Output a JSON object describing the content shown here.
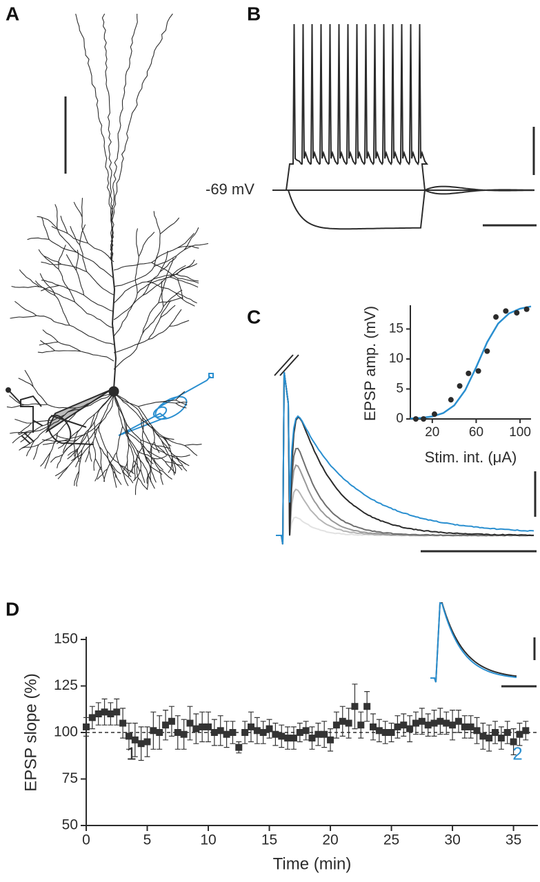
{
  "panels": [
    "A",
    "B",
    "C",
    "D"
  ],
  "membrane_potential_label": "-69 mV",
  "chart_data": [
    {
      "type": "scatter",
      "x_label": "Stim. int. (μA)",
      "y_label": "EPSP amp. (mV)",
      "x": [
        5,
        12,
        22,
        37,
        45,
        53,
        62,
        70,
        78,
        87,
        97,
        106
      ],
      "values": [
        0,
        0,
        0.8,
        3.2,
        5.5,
        7.6,
        8,
        11.3,
        17,
        18,
        17.7,
        18.3
      ],
      "color": "#2b2b2b",
      "fit": {
        "x": [
          0,
          10,
          20,
          30,
          40,
          50,
          60,
          70,
          80,
          90,
          100,
          110
        ],
        "values": [
          0.07,
          0.17,
          0.41,
          0.98,
          2.26,
          4.78,
          8.64,
          12.8,
          15.9,
          17.6,
          18.4,
          18.76
        ],
        "color": "#2a8fd0"
      },
      "xlim": [
        0,
        110
      ],
      "ylim": [
        0,
        18.5
      ],
      "xticks": [
        20,
        60,
        100
      ],
      "yticks": [
        0,
        5,
        10,
        15
      ]
    },
    {
      "type": "scatter",
      "x_label": "Time (min)",
      "y_label": "EPSP slope (%)",
      "x": [
        0,
        0.5,
        1,
        1.5,
        2,
        2.5,
        3,
        3.5,
        4,
        4.5,
        5,
        5.5,
        6,
        6.5,
        7,
        7.5,
        8,
        8.5,
        9,
        9.5,
        10,
        10.5,
        11,
        11.5,
        12,
        12.5,
        13,
        13.5,
        14,
        14.5,
        15,
        15.5,
        16,
        16.5,
        17,
        17.5,
        18,
        18.5,
        19,
        19.5,
        20,
        20.5,
        21,
        21.5,
        22,
        22.5,
        23,
        23.5,
        24,
        24.5,
        25,
        25.5,
        26,
        26.5,
        27,
        27.5,
        28,
        28.5,
        29,
        29.5,
        30,
        30.5,
        31,
        31.5,
        32,
        32.5,
        33,
        33.5,
        34,
        34.5,
        35,
        35.5,
        36
      ],
      "values": [
        103,
        108,
        110,
        111,
        110,
        111,
        105,
        98,
        96,
        94,
        95,
        101,
        100,
        104,
        106,
        100,
        99,
        105,
        102,
        103,
        103,
        100,
        101,
        99,
        100,
        92,
        100,
        103,
        101,
        100,
        102,
        99,
        98,
        97,
        97,
        100,
        101,
        97,
        99,
        99,
        96,
        104,
        106,
        105,
        114,
        104,
        114,
        103,
        101,
        100,
        100,
        103,
        104,
        102,
        105,
        106,
        104,
        105,
        106,
        105,
        104,
        106,
        103,
        103,
        101,
        98,
        97,
        100,
        97,
        100,
        95,
        99,
        101
      ],
      "errors": [
        5,
        6,
        6,
        7,
        6,
        7,
        8,
        7,
        9,
        9,
        8,
        10,
        9,
        8,
        8,
        9,
        8,
        9,
        8,
        8,
        8,
        7,
        8,
        7,
        6,
        3,
        6,
        8,
        7,
        6,
        5,
        6,
        6,
        6,
        6,
        5,
        5,
        6,
        6,
        7,
        6,
        7,
        8,
        8,
        12,
        7,
        8,
        7,
        6,
        6,
        5,
        6,
        6,
        7,
        6,
        7,
        6,
        7,
        7,
        6,
        8,
        6,
        6,
        6,
        7,
        7,
        7,
        6,
        6,
        6,
        7,
        6,
        5
      ],
      "color": "#333333",
      "reference_line": 100,
      "annotations": [
        {
          "text": "1",
          "color": "#333333"
        },
        {
          "text": "2",
          "color": "#2a8fd0"
        }
      ],
      "xlim": [
        0,
        37
      ],
      "ylim": [
        50,
        150
      ],
      "xticks": [
        0,
        5,
        10,
        15,
        20,
        25,
        30,
        35
      ],
      "yticks": [
        50,
        75,
        100,
        125,
        150
      ]
    }
  ]
}
